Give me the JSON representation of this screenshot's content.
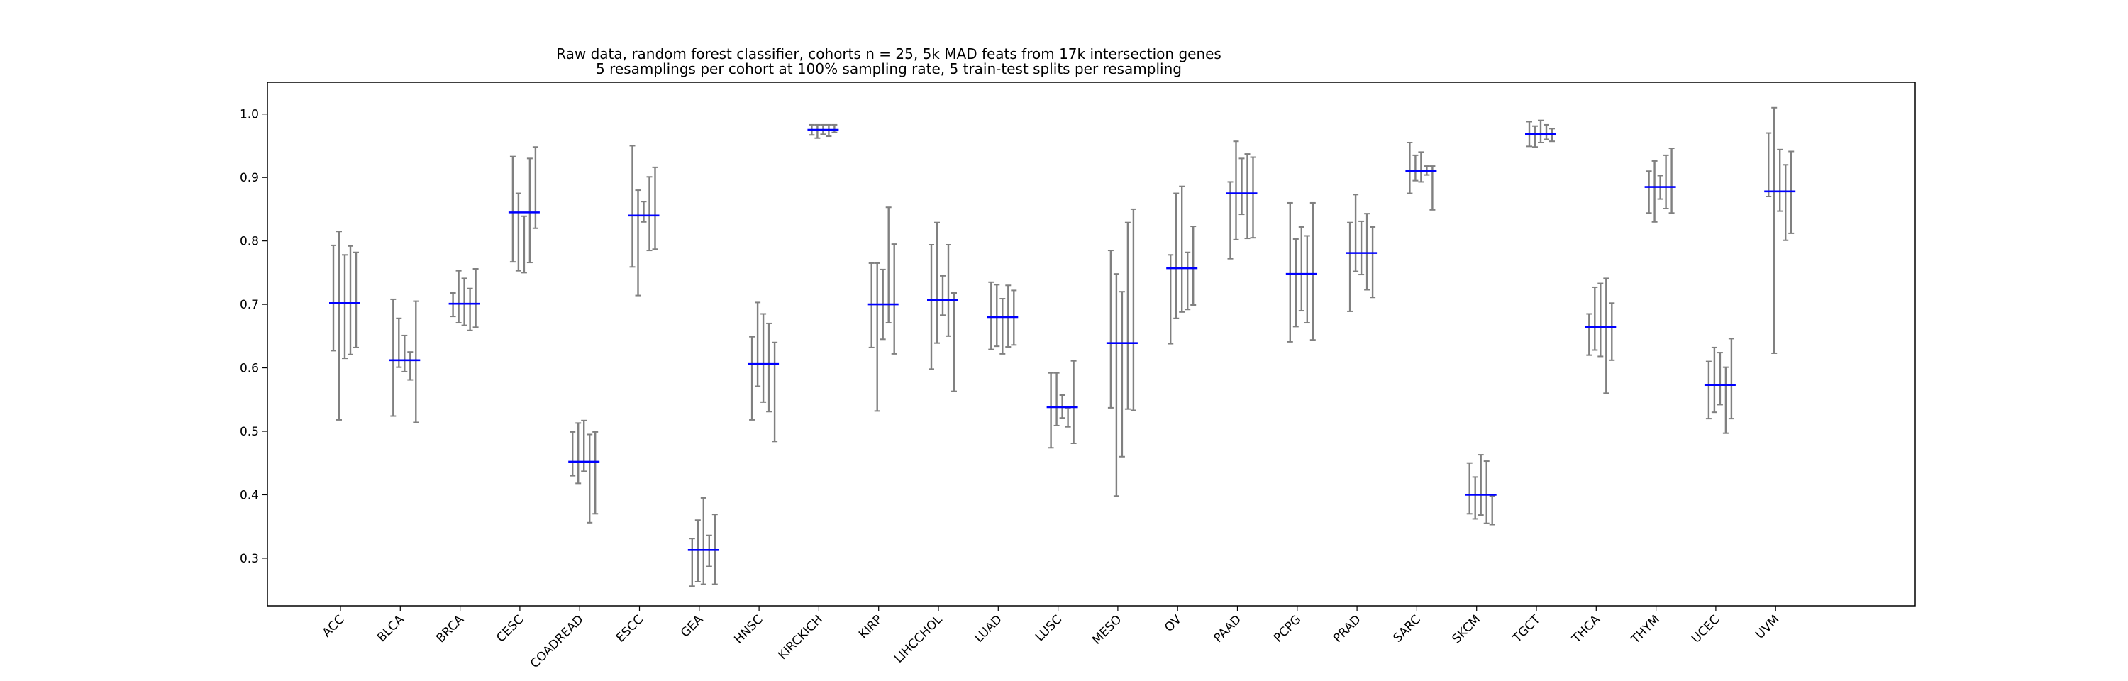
{
  "chart_data": {
    "type": "errorbar",
    "title_lines": [
      "Raw data, random forest classifier, cohorts n = 25, 5k MAD feats from 17k intersection genes",
      "5 resamplings per cohort at 100% sampling rate, 5 train-test splits per resampling"
    ],
    "ylim": [
      0.225,
      1.05
    ],
    "yticks": [
      0.3,
      0.4,
      0.5,
      0.6,
      0.7,
      0.8,
      0.9,
      1.0
    ],
    "grid": false,
    "colors": {
      "errorbar": "#808080",
      "mean": "#0000ff"
    },
    "categories": [
      "ACC",
      "BLCA",
      "BRCA",
      "CESC",
      "COADREAD",
      "ESCC",
      "GEA",
      "HNSC",
      "KIRCKICH",
      "KIRP",
      "LIHCCHOL",
      "LUAD",
      "LUSC",
      "MESO",
      "OV",
      "PAAD",
      "PCPG",
      "PRAD",
      "SARC",
      "SKCM",
      "TGCT",
      "THCA",
      "THYM",
      "UCEC",
      "UVM"
    ],
    "means": [
      0.702,
      0.612,
      0.701,
      0.845,
      0.452,
      0.84,
      0.313,
      0.606,
      0.975,
      0.7,
      0.707,
      0.68,
      0.538,
      0.639,
      0.757,
      0.875,
      0.748,
      0.781,
      0.91,
      0.4,
      0.968,
      0.664,
      0.885,
      0.573,
      0.878
    ],
    "resamplings": [
      [
        [
          0.627,
          0.793
        ],
        [
          0.518,
          0.815
        ],
        [
          0.615,
          0.778
        ],
        [
          0.621,
          0.792
        ],
        [
          0.632,
          0.782
        ]
      ],
      [
        [
          0.524,
          0.708
        ],
        [
          0.601,
          0.678
        ],
        [
          0.594,
          0.651
        ],
        [
          0.581,
          0.625
        ],
        [
          0.514,
          0.705
        ]
      ],
      [
        [
          0.681,
          0.718
        ],
        [
          0.671,
          0.753
        ],
        [
          0.667,
          0.741
        ],
        [
          0.659,
          0.725
        ],
        [
          0.664,
          0.756
        ]
      ],
      [
        [
          0.767,
          0.933
        ],
        [
          0.753,
          0.875
        ],
        [
          0.75,
          0.839
        ],
        [
          0.766,
          0.93
        ],
        [
          0.82,
          0.948
        ]
      ],
      [
        [
          0.43,
          0.499
        ],
        [
          0.418,
          0.513
        ],
        [
          0.437,
          0.517
        ],
        [
          0.356,
          0.495
        ],
        [
          0.37,
          0.499
        ]
      ],
      [
        [
          0.759,
          0.95
        ],
        [
          0.714,
          0.88
        ],
        [
          0.83,
          0.862
        ],
        [
          0.785,
          0.901
        ],
        [
          0.787,
          0.916
        ]
      ],
      [
        [
          0.256,
          0.331
        ],
        [
          0.263,
          0.36
        ],
        [
          0.259,
          0.395
        ],
        [
          0.287,
          0.336
        ],
        [
          0.259,
          0.369
        ]
      ],
      [
        [
          0.518,
          0.649
        ],
        [
          0.571,
          0.703
        ],
        [
          0.546,
          0.685
        ],
        [
          0.531,
          0.67
        ],
        [
          0.484,
          0.64
        ]
      ],
      [
        [
          0.967,
          0.983
        ],
        [
          0.962,
          0.983
        ],
        [
          0.968,
          0.983
        ],
        [
          0.965,
          0.983
        ],
        [
          0.971,
          0.983
        ]
      ],
      [
        [
          0.632,
          0.765
        ],
        [
          0.532,
          0.765
        ],
        [
          0.645,
          0.755
        ],
        [
          0.671,
          0.853
        ],
        [
          0.622,
          0.795
        ]
      ],
      [
        [
          0.598,
          0.794
        ],
        [
          0.639,
          0.829
        ],
        [
          0.683,
          0.745
        ],
        [
          0.65,
          0.794
        ],
        [
          0.563,
          0.718
        ]
      ],
      [
        [
          0.629,
          0.735
        ],
        [
          0.634,
          0.731
        ],
        [
          0.622,
          0.709
        ],
        [
          0.633,
          0.73
        ],
        [
          0.636,
          0.722
        ]
      ],
      [
        [
          0.474,
          0.592
        ],
        [
          0.509,
          0.592
        ],
        [
          0.521,
          0.557
        ],
        [
          0.507,
          0.537
        ],
        [
          0.481,
          0.611
        ]
      ],
      [
        [
          0.537,
          0.785
        ],
        [
          0.398,
          0.748
        ],
        [
          0.46,
          0.72
        ],
        [
          0.535,
          0.829
        ],
        [
          0.533,
          0.85
        ]
      ],
      [
        [
          0.638,
          0.778
        ],
        [
          0.678,
          0.875
        ],
        [
          0.688,
          0.886
        ],
        [
          0.692,
          0.782
        ],
        [
          0.699,
          0.823
        ]
      ],
      [
        [
          0.772,
          0.893
        ],
        [
          0.802,
          0.957
        ],
        [
          0.842,
          0.93
        ],
        [
          0.804,
          0.937
        ],
        [
          0.805,
          0.932
        ]
      ],
      [
        [
          0.641,
          0.86
        ],
        [
          0.665,
          0.803
        ],
        [
          0.69,
          0.822
        ],
        [
          0.671,
          0.808
        ],
        [
          0.644,
          0.86
        ]
      ],
      [
        [
          0.689,
          0.829
        ],
        [
          0.752,
          0.873
        ],
        [
          0.747,
          0.831
        ],
        [
          0.723,
          0.843
        ],
        [
          0.711,
          0.822
        ]
      ],
      [
        [
          0.875,
          0.955
        ],
        [
          0.895,
          0.935
        ],
        [
          0.893,
          0.94
        ],
        [
          0.904,
          0.918
        ],
        [
          0.849,
          0.918
        ]
      ],
      [
        [
          0.37,
          0.45
        ],
        [
          0.362,
          0.428
        ],
        [
          0.368,
          0.463
        ],
        [
          0.355,
          0.453
        ],
        [
          0.353,
          0.398
        ]
      ],
      [
        [
          0.949,
          0.988
        ],
        [
          0.948,
          0.981
        ],
        [
          0.955,
          0.99
        ],
        [
          0.96,
          0.983
        ],
        [
          0.957,
          0.977
        ]
      ],
      [
        [
          0.62,
          0.685
        ],
        [
          0.628,
          0.727
        ],
        [
          0.618,
          0.733
        ],
        [
          0.56,
          0.741
        ],
        [
          0.612,
          0.702
        ]
      ],
      [
        [
          0.844,
          0.91
        ],
        [
          0.83,
          0.926
        ],
        [
          0.866,
          0.903
        ],
        [
          0.851,
          0.935
        ],
        [
          0.844,
          0.946
        ]
      ],
      [
        [
          0.52,
          0.61
        ],
        [
          0.53,
          0.632
        ],
        [
          0.542,
          0.624
        ],
        [
          0.497,
          0.601
        ],
        [
          0.52,
          0.646
        ]
      ],
      [
        [
          0.87,
          0.97
        ],
        [
          0.623,
          1.01
        ],
        [
          0.847,
          0.944
        ],
        [
          0.801,
          0.92
        ],
        [
          0.812,
          0.941
        ]
      ]
    ]
  }
}
